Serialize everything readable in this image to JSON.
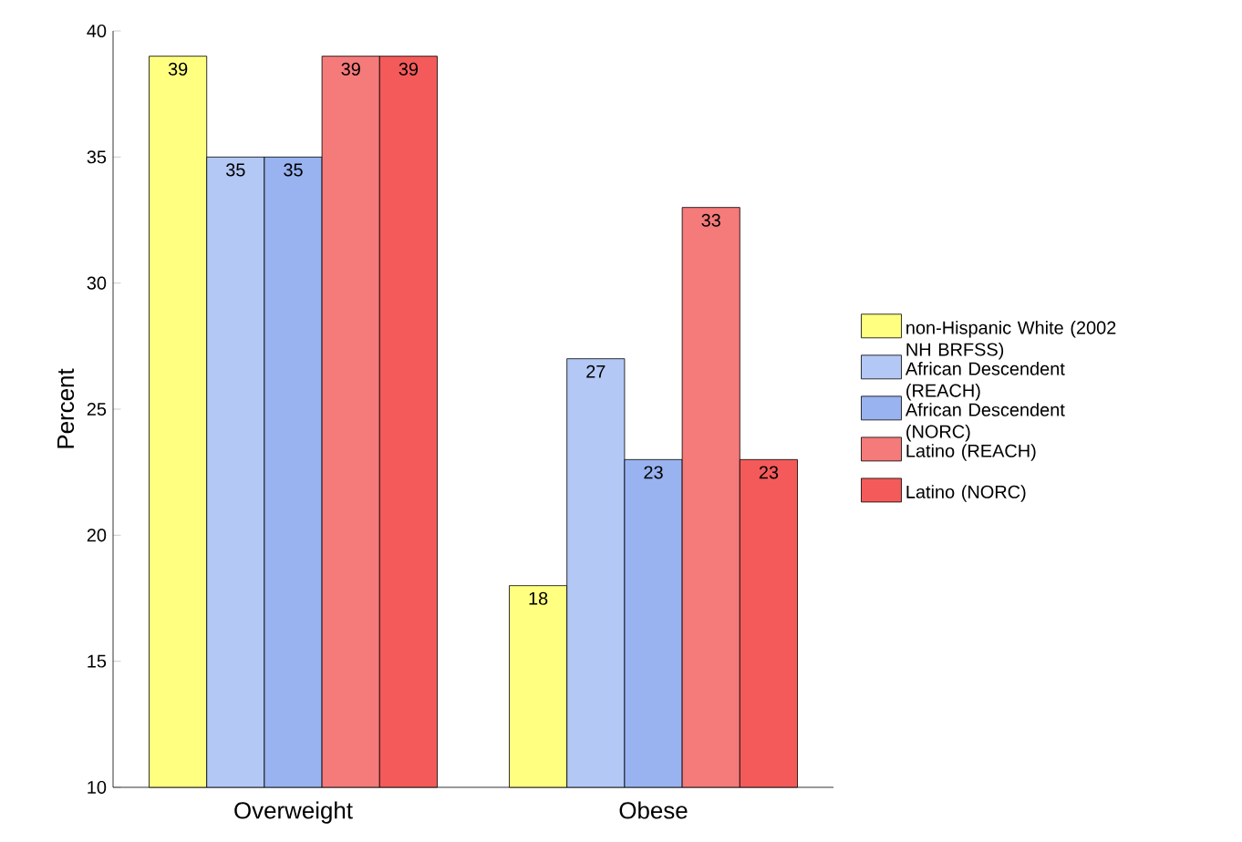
{
  "chart_data": {
    "type": "bar",
    "ylabel": "Percent",
    "categories": [
      "Overweight",
      "Obese"
    ],
    "series": [
      {
        "name": "non-Hispanic White (2002 NH BRFSS)",
        "color": "#ffff80",
        "values": [
          39,
          18
        ]
      },
      {
        "name": "African Descendent (REACH)",
        "color": "#b3c8f5",
        "values": [
          35,
          27
        ]
      },
      {
        "name": "African Descendent (NORC)",
        "color": "#99b3f0",
        "values": [
          35,
          23
        ]
      },
      {
        "name": "Latino (REACH)",
        "color": "#f57a7a",
        "values": [
          39,
          33
        ]
      },
      {
        "name": "Latino (NORC)",
        "color": "#f45a5a",
        "values": [
          39,
          23
        ]
      }
    ],
    "ylim": [
      10,
      40
    ],
    "yticks": [
      10,
      15,
      20,
      25,
      30,
      35,
      40
    ],
    "data_labels": true,
    "legend": "right",
    "grid": false
  }
}
